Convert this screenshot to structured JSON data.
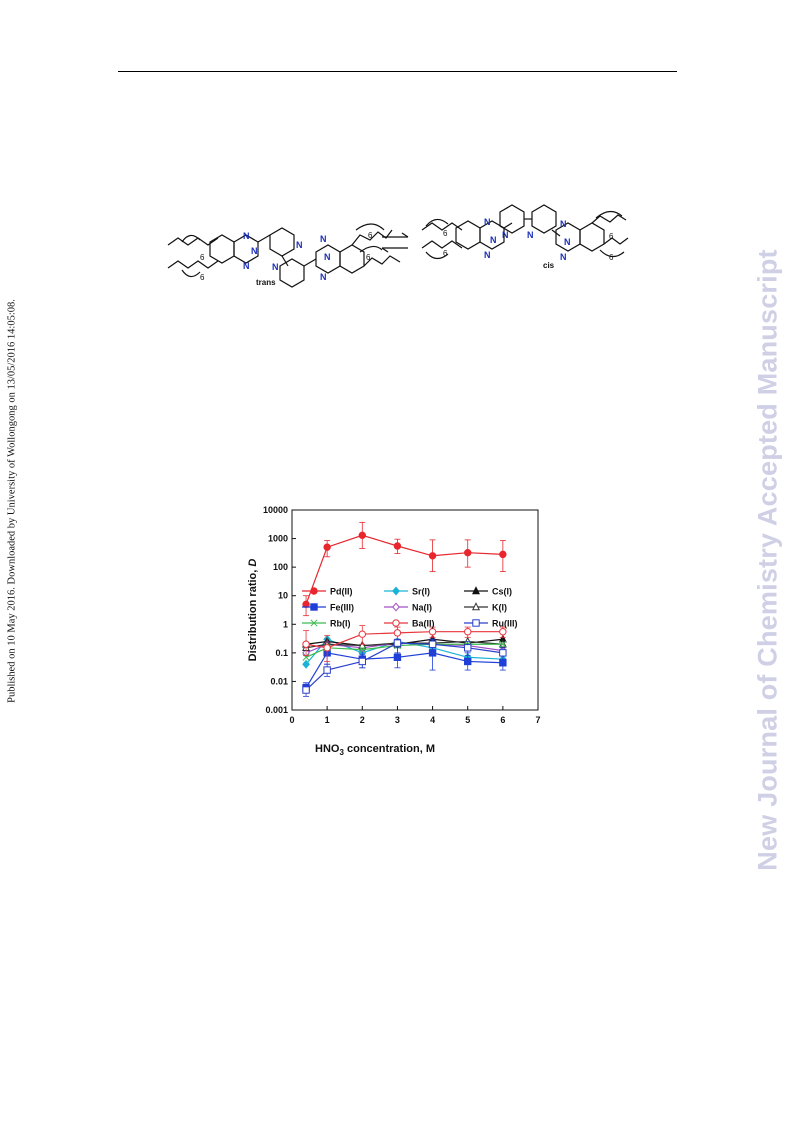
{
  "sidebar_note": "Published on 10 May 2016. Downloaded by University of Wollongong on 13/05/2016 14:05:08.",
  "watermark": {
    "text": "New Journal of Chemistry Accepted Manuscript",
    "color": "#cfd0e6"
  },
  "scheme": {
    "trans_label": "trans",
    "cis_label": "cis",
    "chain_label": "6",
    "n_label": "N"
  },
  "chart_data": {
    "type": "line",
    "xlabel": "HNO3 concentration, M",
    "ylabel": "Distribution ratio, D",
    "xlim": [
      0,
      7
    ],
    "ylim": [
      0.001,
      10000
    ],
    "yscale": "log",
    "xticks": [
      "0",
      "1",
      "2",
      "3",
      "4",
      "5",
      "6",
      "7"
    ],
    "yticks": [
      "0.001",
      "0.01",
      "0.1",
      "1",
      "10",
      "100",
      "1000",
      "10000"
    ],
    "grid": false,
    "legend": "center",
    "x": [
      0.4,
      1,
      2,
      3,
      4,
      5,
      6
    ],
    "series": [
      {
        "name": "Pd(II)",
        "color": "#e8262d",
        "marker": "filled-circle",
        "values": [
          5,
          500,
          1300,
          550,
          250,
          320,
          280
        ],
        "err": [
          [
            2,
            10
          ],
          [
            230,
            850
          ],
          [
            450,
            3700
          ],
          [
            300,
            950
          ],
          [
            70,
            900
          ],
          [
            100,
            900
          ],
          [
            70,
            850
          ]
        ]
      },
      {
        "name": "Sr(I)",
        "color": "#1ab3d6",
        "marker": "filled-diamond",
        "values": [
          0.04,
          0.3,
          0.1,
          0.25,
          0.15,
          0.07,
          0.06
        ]
      },
      {
        "name": "Cs(I)",
        "color": "#111111",
        "marker": "filled-triangle",
        "values": [
          0.2,
          0.25,
          0.18,
          0.2,
          0.3,
          0.22,
          0.3
        ]
      },
      {
        "name": "Fe(III)",
        "color": "#1f3fd8",
        "marker": "filled-square",
        "values": [
          0.006,
          0.1,
          0.06,
          0.07,
          0.1,
          0.05,
          0.045
        ],
        "err": [
          [
            0.004,
            0.009
          ],
          [
            0.04,
            0.2
          ],
          [
            0.03,
            0.12
          ],
          [
            0.03,
            0.15
          ],
          [
            0.025,
            0.3
          ],
          [
            0.025,
            0.1
          ],
          [
            0.025,
            0.08
          ]
        ]
      },
      {
        "name": "Na(I)",
        "color": "#a24fc4",
        "marker": "open-diamond",
        "values": [
          0.1,
          0.2,
          0.15,
          0.22,
          0.2,
          0.18,
          0.12
        ]
      },
      {
        "name": "K(I)",
        "color": "#333333",
        "marker": "open-triangle",
        "values": [
          0.15,
          0.2,
          0.18,
          0.22,
          0.22,
          0.25,
          0.2
        ]
      },
      {
        "name": "Rb(I)",
        "color": "#3dbb4f",
        "marker": "cross",
        "values": [
          0.07,
          0.15,
          0.13,
          0.18,
          0.2,
          0.2,
          0.2
        ]
      },
      {
        "name": "Ba(II)",
        "color": "#e8363d",
        "marker": "open-circle",
        "values": [
          0.2,
          0.15,
          0.45,
          0.5,
          0.55,
          0.55,
          0.55
        ],
        "err": [
          [
            0.08,
            0.6
          ],
          [
            0.05,
            0.4
          ],
          [
            0.2,
            0.9
          ],
          [
            0.3,
            0.8
          ],
          [
            0.35,
            0.8
          ],
          [
            0.35,
            0.8
          ],
          [
            0.35,
            0.8
          ]
        ]
      },
      {
        "name": "Ru(III)",
        "color": "#2a40cc",
        "marker": "open-square",
        "values": [
          0.005,
          0.025,
          0.05,
          0.22,
          0.2,
          0.15,
          0.1
        ],
        "err": [
          [
            0.003,
            0.008
          ],
          [
            0.015,
            0.04
          ],
          [
            0.03,
            0.09
          ],
          [
            0.1,
            0.3
          ],
          [
            0.1,
            0.3
          ],
          [
            0.08,
            0.25
          ],
          [
            0.06,
            0.15
          ]
        ]
      }
    ]
  }
}
